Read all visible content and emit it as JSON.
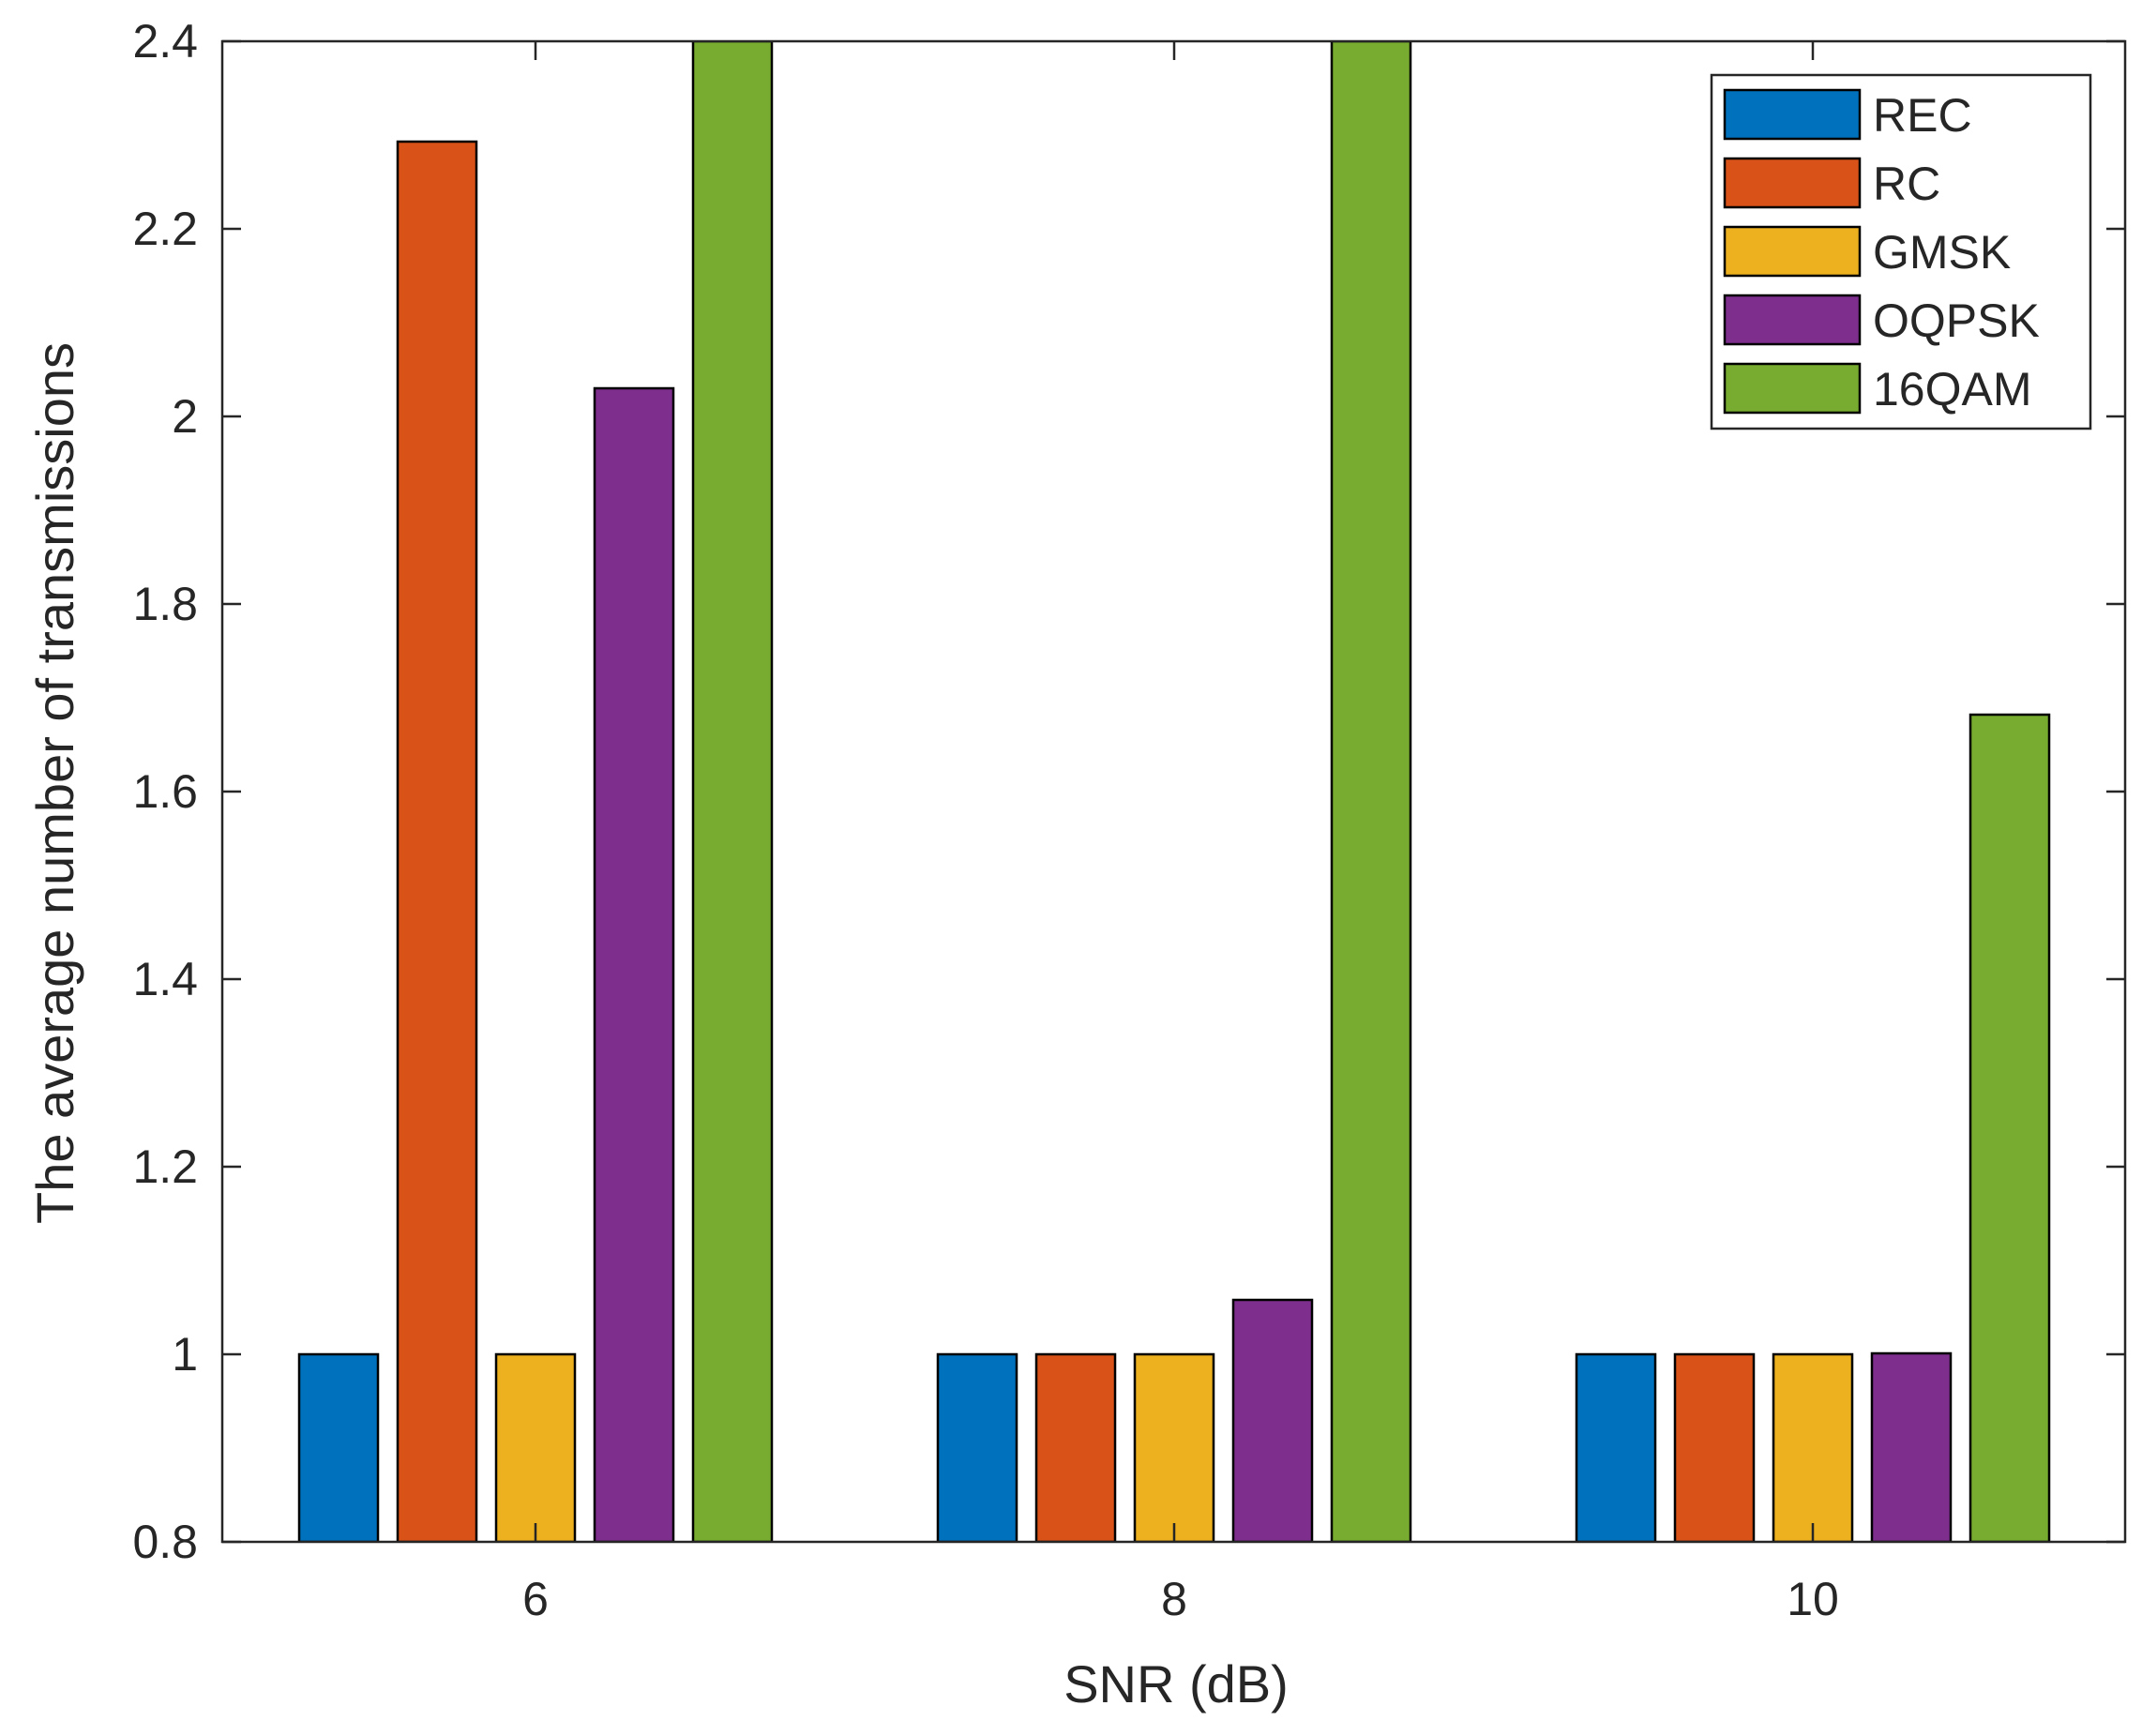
{
  "chart_data": {
    "type": "bar",
    "title": "",
    "xlabel": "SNR (dB)",
    "ylabel": "The average number of transmissions",
    "categories": [
      "6",
      "8",
      "10"
    ],
    "ylim": [
      0.8,
      2.4
    ],
    "yticks": [
      "0.8",
      "1",
      "1.2",
      "1.4",
      "1.6",
      "1.8",
      "2",
      "2.2",
      "2.4"
    ],
    "grid": false,
    "legend_position": "top-right",
    "series": [
      {
        "name": "REC",
        "color": "#0072BD",
        "values": [
          1.0,
          1.0,
          1.0
        ]
      },
      {
        "name": "RC",
        "color": "#D95319",
        "values": [
          2.293,
          1.0,
          1.0
        ]
      },
      {
        "name": "GMSK",
        "color": "#EDB120",
        "values": [
          1.0,
          1.0,
          1.0
        ]
      },
      {
        "name": "OQPSK",
        "color": "#7E2F8E",
        "values": [
          2.03,
          1.058,
          1.001
        ]
      },
      {
        "name": "16QAM",
        "color": "#77AC30",
        "values": [
          2.4,
          2.4,
          1.682
        ]
      }
    ]
  }
}
